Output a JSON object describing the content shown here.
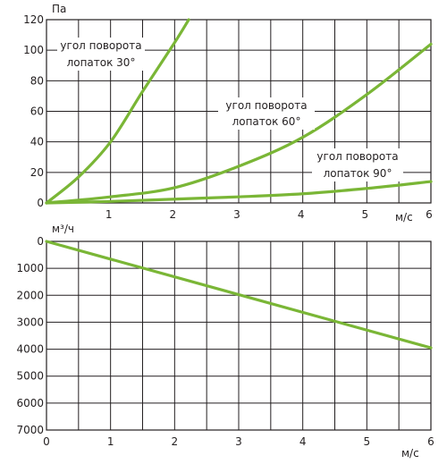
{
  "chart_data": [
    {
      "type": "line",
      "ylabel": "Па",
      "xlabel": "м/с",
      "xlim": [
        0,
        6
      ],
      "ylim": [
        0,
        120
      ],
      "grid": true,
      "x_ticks": [
        1,
        2,
        3,
        4,
        5,
        6
      ],
      "y_ticks": [
        0,
        20,
        40,
        60,
        80,
        100,
        120
      ],
      "line_color": "#7ab636",
      "series": [
        {
          "label": [
            "угол поворота",
            "лопаток 30°"
          ],
          "x": [
            0,
            0.5,
            1,
            1.5,
            2,
            2.22
          ],
          "y": [
            0,
            17,
            40,
            73,
            105,
            120
          ]
        },
        {
          "label": [
            "угол поворота",
            "лопаток 60°"
          ],
          "x": [
            0,
            1,
            2,
            3,
            4,
            5,
            6
          ],
          "y": [
            0,
            4,
            10,
            24,
            43,
            71,
            104
          ]
        },
        {
          "label": [
            "угол поворота",
            "лопаток 90°"
          ],
          "x": [
            0,
            1,
            2,
            3,
            4,
            5,
            6
          ],
          "y": [
            0,
            1,
            2.5,
            4,
            6,
            9.5,
            14
          ]
        }
      ]
    },
    {
      "type": "line",
      "ylabel": "м³/ч",
      "xlabel": "м/с",
      "xlim": [
        0,
        6
      ],
      "ylim": [
        7000,
        0
      ],
      "grid": true,
      "x_ticks": [
        0,
        1,
        2,
        3,
        4,
        5,
        6
      ],
      "y_ticks": [
        0,
        1000,
        2000,
        3000,
        4000,
        5000,
        6000,
        7000
      ],
      "line_color": "#7ab636",
      "series": [
        {
          "x": [
            0,
            6
          ],
          "y": [
            0,
            3950
          ]
        }
      ]
    }
  ]
}
